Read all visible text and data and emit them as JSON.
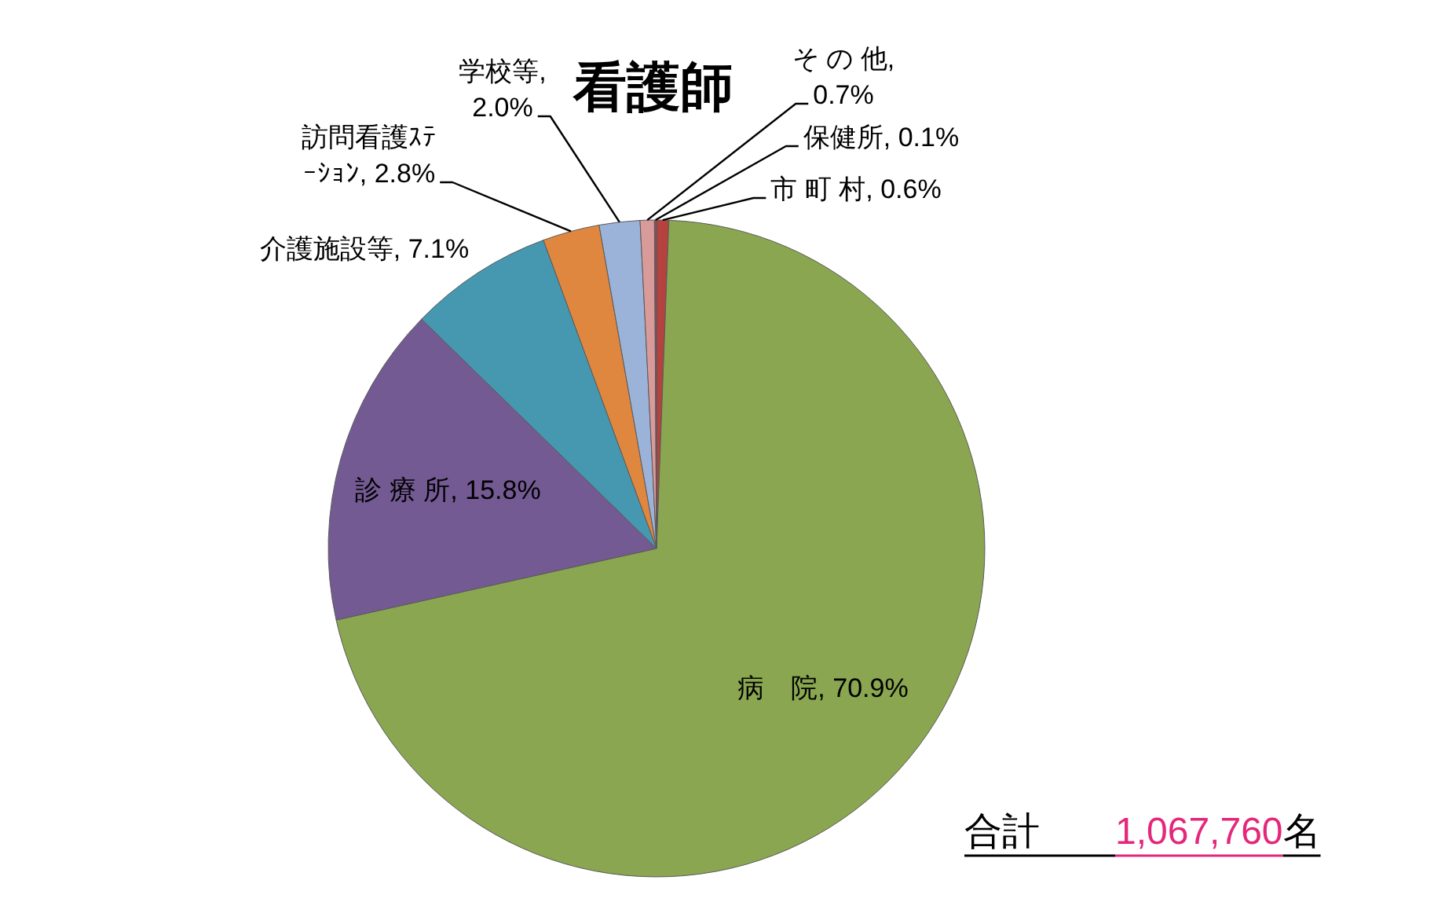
{
  "chart_data": {
    "type": "pie",
    "title": "看護師",
    "categories": [
      "市 町 村",
      "病　院",
      "診 療 所",
      "介護施設等",
      "訪問看護ｽﾃｰｼｮﾝ",
      "学校等",
      "そ の 他",
      "保健所"
    ],
    "values": [
      0.6,
      70.9,
      15.8,
      7.1,
      2.8,
      2.0,
      0.7,
      0.1
    ],
    "value_labels": [
      ", 0.6%",
      ", 70.9%",
      ", 15.8%",
      ", 7.1%",
      ", 2.8%",
      ", 2.0%",
      ", 0.7%",
      ", 0.1%"
    ],
    "colors": [
      "#b5423f",
      "#8aa650",
      "#745a93",
      "#4698b0",
      "#e0873f",
      "#9cb3d9",
      "#d99a9a",
      "#8f4b5a"
    ],
    "annotations": [
      "合計　　1,067,760名"
    ]
  }
}
